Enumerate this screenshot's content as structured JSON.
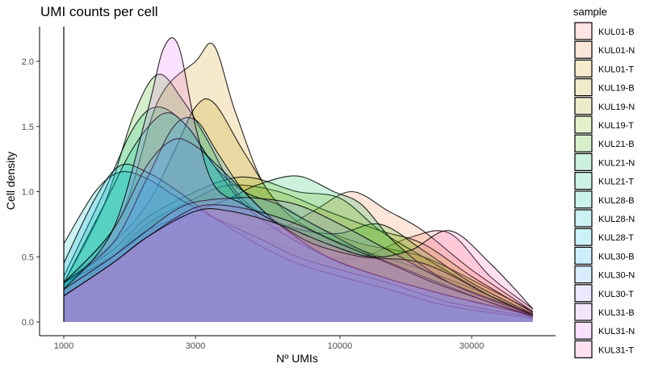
{
  "chart_data": {
    "type": "area",
    "title": "UMI counts per cell",
    "xlabel": "Nº UMIs",
    "ylabel": "Cell density",
    "x_scale": "log10",
    "xlim": [
      1000,
      50000
    ],
    "ylim": [
      0,
      2.25
    ],
    "x_ticks": [
      {
        "value": 1000,
        "label": "1000"
      },
      {
        "value": 3000,
        "label": "3000"
      },
      {
        "value": 10000,
        "label": "10000"
      },
      {
        "value": 30000,
        "label": "30000"
      }
    ],
    "y_ticks": [
      {
        "value": 0,
        "label": "0.0"
      },
      {
        "value": 0.5,
        "label": "0.5"
      },
      {
        "value": 1.0,
        "label": "1.0"
      },
      {
        "value": 1.5,
        "label": "1.5"
      },
      {
        "value": 2.0,
        "label": "2.0"
      }
    ],
    "grid": false,
    "legend": {
      "title": "sample",
      "position": "right"
    },
    "fill_opacity": 0.2,
    "series": [
      {
        "name": "KUL01-B",
        "color": "#F8766D",
        "x": [
          1000,
          1500,
          2000,
          3000,
          4000,
          6000,
          8000,
          12000,
          18000,
          25000,
          35000,
          50000
        ],
        "y": [
          0.28,
          0.45,
          0.6,
          0.75,
          0.7,
          0.6,
          0.5,
          0.5,
          0.65,
          0.68,
          0.35,
          0.1
        ]
      },
      {
        "name": "KUL01-N",
        "color": "#EE8043",
        "x": [
          1000,
          1500,
          2000,
          3000,
          4000,
          6000,
          8000,
          11000,
          15000,
          20000,
          30000,
          50000
        ],
        "y": [
          0.3,
          0.5,
          0.7,
          0.82,
          0.75,
          0.72,
          0.85,
          1.0,
          0.85,
          0.7,
          0.4,
          0.08
        ]
      },
      {
        "name": "KUL01-T",
        "color": "#D89000",
        "x": [
          1000,
          1600,
          2200,
          3000,
          3500,
          4200,
          5500,
          8000,
          12000,
          20000,
          35000,
          50000
        ],
        "y": [
          0.3,
          0.8,
          1.7,
          2.0,
          2.12,
          1.6,
          1.0,
          0.75,
          0.6,
          0.5,
          0.25,
          0.08
        ]
      },
      {
        "name": "KUL19-B",
        "color": "#BB9D00",
        "x": [
          1000,
          1500,
          2000,
          2500,
          3000,
          3500,
          4500,
          6000,
          8000,
          12000,
          20000,
          35000,
          50000
        ],
        "y": [
          0.3,
          0.6,
          0.9,
          1.3,
          1.65,
          1.68,
          1.3,
          0.9,
          0.7,
          0.55,
          0.4,
          0.2,
          0.05
        ]
      },
      {
        "name": "KUL19-N",
        "color": "#A3A500",
        "x": [
          1000,
          1500,
          2000,
          3000,
          4000,
          6000,
          9000,
          14000,
          20000,
          30000,
          50000
        ],
        "y": [
          0.25,
          0.5,
          0.75,
          0.95,
          1.05,
          1.0,
          0.85,
          0.7,
          0.6,
          0.35,
          0.07
        ]
      },
      {
        "name": "KUL19-T",
        "color": "#7CAE00",
        "x": [
          1000,
          1500,
          2000,
          3000,
          4000,
          5000,
          7000,
          10000,
          14000,
          20000,
          35000,
          50000
        ],
        "y": [
          0.3,
          0.55,
          0.8,
          1.0,
          1.1,
          1.1,
          1.0,
          0.95,
          0.7,
          0.5,
          0.2,
          0.05
        ]
      },
      {
        "name": "KUL21-B",
        "color": "#39B600",
        "x": [
          1000,
          1400,
          1800,
          2200,
          2700,
          3300,
          4200,
          5500,
          7500,
          10000,
          14000,
          20000,
          30000,
          50000
        ],
        "y": [
          0.3,
          0.9,
          1.6,
          1.9,
          1.7,
          1.4,
          1.0,
          0.8,
          0.7,
          0.68,
          0.75,
          0.55,
          0.3,
          0.06
        ]
      },
      {
        "name": "KUL21-N",
        "color": "#00BB4E",
        "x": [
          1000,
          1500,
          2000,
          3000,
          4000,
          5000,
          7000,
          9500,
          12000,
          16000,
          25000,
          50000
        ],
        "y": [
          0.3,
          0.5,
          0.7,
          0.85,
          0.95,
          1.05,
          1.12,
          1.0,
          0.9,
          0.6,
          0.3,
          0.05
        ]
      },
      {
        "name": "KUL21-T",
        "color": "#00BF7D",
        "x": [
          1000,
          1400,
          1800,
          2200,
          2800,
          3500,
          4500,
          6000,
          8000,
          12000,
          20000,
          35000,
          50000
        ],
        "y": [
          0.35,
          1.0,
          1.5,
          1.65,
          1.5,
          1.2,
          1.0,
          0.9,
          0.75,
          0.55,
          0.35,
          0.15,
          0.05
        ]
      },
      {
        "name": "KUL28-B",
        "color": "#00C1A3",
        "x": [
          1000,
          1400,
          1800,
          2300,
          2800,
          3500,
          4500,
          6000,
          9000,
          14000,
          25000,
          50000
        ],
        "y": [
          0.3,
          0.9,
          1.35,
          1.6,
          1.5,
          1.2,
          0.9,
          0.7,
          0.5,
          0.35,
          0.2,
          0.05
        ]
      },
      {
        "name": "KUL28-N",
        "color": "#00BFC4",
        "x": [
          1000,
          1300,
          1600,
          2000,
          2600,
          3500,
          5000,
          7000,
          10000,
          15000,
          25000,
          50000
        ],
        "y": [
          0.6,
          1.0,
          1.15,
          1.1,
          0.95,
          0.8,
          0.65,
          0.5,
          0.4,
          0.3,
          0.15,
          0.04
        ]
      },
      {
        "name": "KUL28-T",
        "color": "#00BAE0",
        "x": [
          1000,
          1300,
          1600,
          2000,
          2600,
          3500,
          5000,
          7000,
          10000,
          15000,
          25000,
          50000
        ],
        "y": [
          0.45,
          0.95,
          1.2,
          1.15,
          1.0,
          0.8,
          0.6,
          0.45,
          0.35,
          0.25,
          0.12,
          0.03
        ]
      },
      {
        "name": "KUL30-B",
        "color": "#00B0F6",
        "x": [
          1000,
          1500,
          2000,
          2500,
          3000,
          3600,
          4500,
          6000,
          9000,
          14000,
          25000,
          50000
        ],
        "y": [
          0.3,
          0.6,
          1.1,
          1.5,
          1.55,
          1.3,
          1.0,
          0.75,
          0.5,
          0.35,
          0.2,
          0.05
        ]
      },
      {
        "name": "KUL30-N",
        "color": "#35A2FF",
        "x": [
          1000,
          1500,
          2000,
          2500,
          3000,
          3600,
          4500,
          6000,
          9000,
          14000,
          25000,
          50000
        ],
        "y": [
          0.3,
          0.7,
          1.2,
          1.4,
          1.35,
          1.2,
          1.0,
          0.75,
          0.5,
          0.35,
          0.2,
          0.05
        ]
      },
      {
        "name": "KUL30-T",
        "color": "#9590FF",
        "x": [
          1000,
          1500,
          2000,
          2500,
          3000,
          4000,
          5000,
          7000,
          10000,
          15000,
          25000,
          50000
        ],
        "y": [
          0.25,
          0.5,
          0.7,
          0.85,
          0.92,
          0.95,
          0.95,
          0.9,
          0.75,
          0.55,
          0.3,
          0.06
        ]
      },
      {
        "name": "KUL31-B",
        "color": "#C77CFF",
        "x": [
          1000,
          1500,
          2000,
          2800,
          3500,
          5000,
          7000,
          10000,
          15000,
          22000,
          35000,
          50000
        ],
        "y": [
          0.2,
          0.45,
          0.65,
          0.85,
          0.9,
          0.85,
          0.75,
          0.6,
          0.45,
          0.3,
          0.15,
          0.04
        ]
      },
      {
        "name": "KUL31-N",
        "color": "#E76BF3",
        "x": [
          1000,
          1500,
          2000,
          2300,
          2600,
          3000,
          3500,
          4500,
          6000,
          8000,
          12000,
          20000,
          35000,
          50000
        ],
        "y": [
          0.25,
          0.7,
          1.6,
          2.1,
          2.12,
          1.5,
          1.05,
          0.9,
          0.75,
          0.6,
          0.5,
          0.45,
          0.2,
          0.05
        ]
      },
      {
        "name": "KUL31-T",
        "color": "#FF62BC",
        "x": [
          1000,
          1500,
          2000,
          3000,
          4000,
          6000,
          9000,
          13000,
          18000,
          25000,
          35000,
          50000
        ],
        "y": [
          0.2,
          0.45,
          0.65,
          0.85,
          0.85,
          0.75,
          0.6,
          0.5,
          0.55,
          0.7,
          0.45,
          0.1
        ]
      }
    ]
  }
}
